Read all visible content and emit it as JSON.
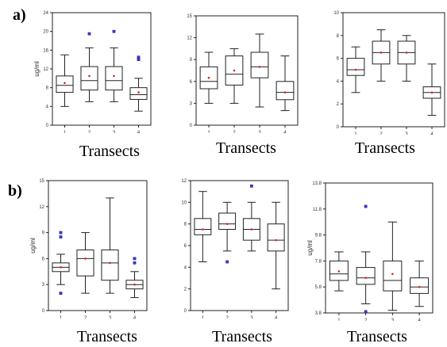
{
  "panel_labels": {
    "a": "a)",
    "b": "b)"
  },
  "chart_data": [
    {
      "type": "box",
      "panel": "a",
      "xlabel": "Transects",
      "ylabel": "ug/ml",
      "categories": [
        "1",
        "2",
        "3",
        "4"
      ],
      "ylim": [
        0,
        24
      ],
      "yticks": [
        0,
        4,
        8,
        12,
        16,
        20,
        24
      ],
      "boxes": [
        {
          "min": 4,
          "q1": 7,
          "median": 8.5,
          "q3": 10.5,
          "max": 15,
          "mean": 9,
          "outliers": []
        },
        {
          "min": 5,
          "q1": 7.5,
          "median": 9.5,
          "q3": 12.5,
          "max": 16.5,
          "mean": 10.5,
          "outliers": [
            19.5
          ]
        },
        {
          "min": 5,
          "q1": 7.5,
          "median": 9.5,
          "q3": 12.5,
          "max": 16.5,
          "mean": 10.5,
          "outliers": [
            20
          ]
        },
        {
          "min": 3,
          "q1": 5.5,
          "median": 6.5,
          "q3": 8,
          "max": 10,
          "mean": 7,
          "outliers": [
            14,
            14.5
          ]
        }
      ]
    },
    {
      "type": "box",
      "panel": "a",
      "xlabel": "Transects",
      "ylabel": "",
      "categories": [
        "1",
        "2",
        "3",
        "4"
      ],
      "ylim": [
        0,
        15
      ],
      "yticks": [
        0,
        3,
        6,
        9,
        12,
        15
      ],
      "boxes": [
        {
          "min": 3,
          "q1": 5,
          "median": 6,
          "q3": 8,
          "max": 10,
          "mean": 6.5,
          "outliers": []
        },
        {
          "min": 3,
          "q1": 5.5,
          "median": 7,
          "q3": 9.5,
          "max": 10.5,
          "mean": 7.5,
          "outliers": []
        },
        {
          "min": 2.5,
          "q1": 6.5,
          "median": 8,
          "q3": 10,
          "max": 12.5,
          "mean": 8,
          "outliers": []
        },
        {
          "min": 2,
          "q1": 3.5,
          "median": 4.5,
          "q3": 6,
          "max": 9.5,
          "mean": 4.5,
          "outliers": []
        }
      ]
    },
    {
      "type": "box",
      "panel": "a",
      "xlabel": "Transects",
      "ylabel": "",
      "categories": [
        "1",
        "2",
        "3",
        "4"
      ],
      "ylim": [
        0,
        10
      ],
      "yticks": [
        0,
        2,
        4,
        6,
        8,
        10
      ],
      "boxes": [
        {
          "min": 3,
          "q1": 4.5,
          "median": 5,
          "q3": 6,
          "max": 7,
          "mean": 5,
          "outliers": []
        },
        {
          "min": 4,
          "q1": 5.5,
          "median": 6.5,
          "q3": 7.5,
          "max": 8.5,
          "mean": 6.5,
          "outliers": []
        },
        {
          "min": 4,
          "q1": 5.5,
          "median": 6.5,
          "q3": 7.5,
          "max": 8,
          "mean": 6.5,
          "outliers": []
        },
        {
          "min": 1,
          "q1": 2.5,
          "median": 3,
          "q3": 3.5,
          "max": 5.5,
          "mean": 3,
          "outliers": []
        }
      ]
    },
    {
      "type": "box",
      "panel": "b",
      "xlabel": "Transects",
      "ylabel": "ug/ml",
      "categories": [
        "1",
        "2",
        "3",
        "4"
      ],
      "ylim": [
        0,
        15
      ],
      "yticks": [
        0,
        3,
        6,
        9,
        12,
        15
      ],
      "boxes": [
        {
          "min": 3,
          "q1": 4.5,
          "median": 5,
          "q3": 5.5,
          "max": 6.5,
          "mean": 5,
          "outliers": [
            9,
            8.5,
            2
          ]
        },
        {
          "min": 2,
          "q1": 4,
          "median": 6,
          "q3": 7,
          "max": 9,
          "mean": 6,
          "outliers": []
        },
        {
          "min": 2,
          "q1": 3.5,
          "median": 5.5,
          "q3": 7,
          "max": 13,
          "mean": 5.5,
          "outliers": []
        },
        {
          "min": 1.5,
          "q1": 2.5,
          "median": 3,
          "q3": 3.5,
          "max": 4.5,
          "mean": 3,
          "outliers": [
            6,
            5.5
          ]
        }
      ]
    },
    {
      "type": "box",
      "panel": "b",
      "xlabel": "Transects",
      "ylabel": "",
      "categories": [
        "1",
        "2",
        "3",
        "4"
      ],
      "ylim": [
        0,
        12
      ],
      "yticks": [
        0,
        2,
        4,
        6,
        8,
        10,
        12
      ],
      "boxes": [
        {
          "min": 4.5,
          "q1": 7,
          "median": 7.5,
          "q3": 8.5,
          "max": 11,
          "mean": 7.5,
          "outliers": []
        },
        {
          "min": 5.5,
          "q1": 7.5,
          "median": 8,
          "q3": 9,
          "max": 10,
          "mean": 8,
          "outliers": [
            4.5
          ]
        },
        {
          "min": 5.5,
          "q1": 6.5,
          "median": 7.5,
          "q3": 8.5,
          "max": 10,
          "mean": 7.5,
          "outliers": [
            11.5
          ]
        },
        {
          "min": 2,
          "q1": 5.5,
          "median": 6.5,
          "q3": 8,
          "max": 10,
          "mean": 6.5,
          "outliers": []
        }
      ]
    },
    {
      "type": "box",
      "panel": "b",
      "xlabel": "Transects",
      "ylabel": "ug/ml",
      "categories": [
        "1",
        "2",
        "3",
        "4"
      ],
      "ylim": [
        3.8,
        13.8
      ],
      "yticks": [
        3.8,
        5.8,
        7.8,
        9.8,
        11.8,
        13.8
      ],
      "boxes": [
        {
          "min": 5.5,
          "q1": 6.3,
          "median": 6.8,
          "q3": 7.8,
          "max": 8.5,
          "mean": 7,
          "outliers": []
        },
        {
          "min": 4.5,
          "q1": 6,
          "median": 6.5,
          "q3": 7.3,
          "max": 8.5,
          "mean": 6.5,
          "outliers": [
            12,
            3.9
          ]
        },
        {
          "min": 4,
          "q1": 5.5,
          "median": 6.3,
          "q3": 7.8,
          "max": 10.8,
          "mean": 6.8,
          "outliers": []
        },
        {
          "min": 4.3,
          "q1": 5.3,
          "median": 5.8,
          "q3": 6.5,
          "max": 7.8,
          "mean": 5.8,
          "outliers": []
        }
      ]
    }
  ]
}
